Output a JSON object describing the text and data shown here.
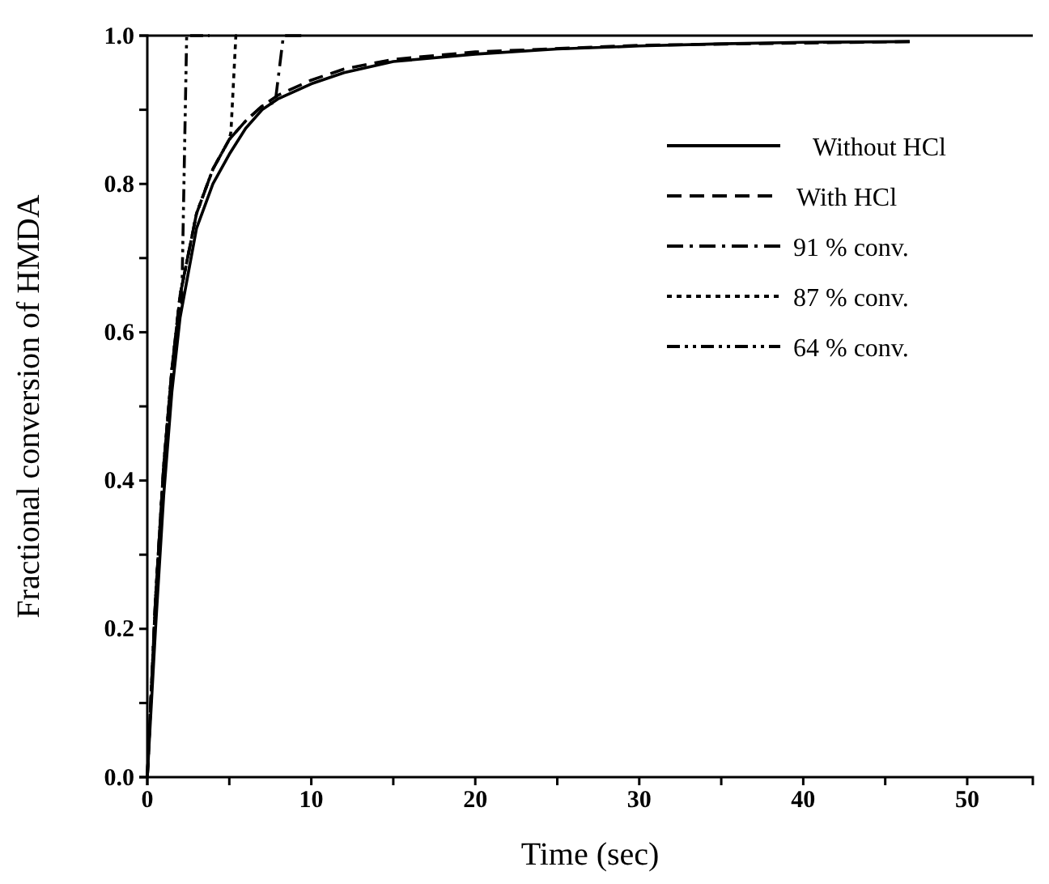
{
  "chart_data": {
    "type": "line",
    "xlabel": "Time (sec)",
    "ylabel": "Fractional conversion of HMDA",
    "xlim": [
      0,
      54
    ],
    "ylim": [
      0,
      1
    ],
    "xticks": [
      0,
      {
        "value": 5,
        "label": null
      },
      10,
      {
        "value": 15,
        "label": null
      },
      20,
      {
        "value": 25,
        "label": null
      },
      30,
      {
        "value": 35,
        "label": null
      },
      40,
      {
        "value": 45,
        "label": null
      },
      50
    ],
    "yticks": [
      {
        "value": 0,
        "label": "0.0"
      },
      {
        "value": 0.1,
        "label": null
      },
      0.2,
      {
        "value": 0.3,
        "label": null
      },
      0.4,
      {
        "value": 0.5,
        "label": null
      },
      0.6,
      {
        "value": 0.7,
        "label": null
      },
      0.8,
      {
        "value": 0.9,
        "label": null
      },
      {
        "value": 1,
        "label": "1.0"
      }
    ],
    "legend": "top right",
    "grid": false,
    "marker": "none",
    "series": [
      {
        "name": "Without HCl",
        "color": "#000000",
        "line_style": "solid",
        "x": [
          0,
          0.5,
          1,
          1.5,
          2,
          3,
          4,
          5,
          6,
          7,
          8,
          10,
          12,
          15,
          20,
          25,
          30,
          35,
          40,
          46.5
        ],
        "values": [
          0,
          0.2,
          0.38,
          0.52,
          0.62,
          0.74,
          0.8,
          0.84,
          0.875,
          0.9,
          0.915,
          0.935,
          0.95,
          0.965,
          0.975,
          0.982,
          0.986,
          0.989,
          0.991,
          0.992
        ]
      },
      {
        "name": "With HCl",
        "color": "#000000",
        "line_style": "dashed",
        "x": [
          0,
          0.5,
          1,
          1.5,
          2,
          3,
          4,
          5,
          6,
          7,
          8,
          10,
          12,
          15,
          20,
          30,
          40,
          46.5
        ],
        "values": [
          0,
          0.24,
          0.42,
          0.55,
          0.65,
          0.76,
          0.82,
          0.86,
          0.885,
          0.905,
          0.92,
          0.94,
          0.955,
          0.968,
          0.978,
          0.987,
          0.99,
          0.992
        ]
      },
      {
        "name": "91 % conv.",
        "color": "#000000",
        "line_style": "dashdot",
        "x": [
          0,
          0.5,
          1,
          1.5,
          2,
          3,
          4,
          5,
          6,
          7,
          7.8,
          8.3,
          9.5
        ],
        "values": [
          0,
          0.24,
          0.42,
          0.55,
          0.65,
          0.76,
          0.82,
          0.86,
          0.885,
          0.905,
          0.91,
          1,
          1
        ]
      },
      {
        "name": "87 % conv.",
        "color": "#000000",
        "line_style": "dotted",
        "x": [
          0,
          0.5,
          1,
          1.5,
          2,
          3,
          4,
          5,
          5.1,
          5.4,
          5.6
        ],
        "values": [
          0,
          0.24,
          0.42,
          0.55,
          0.65,
          0.76,
          0.82,
          0.86,
          0.87,
          1,
          1
        ]
      },
      {
        "name": "64 % conv.",
        "color": "#000000",
        "line_style": "dashdotdot",
        "x": [
          0,
          0.5,
          1,
          1.5,
          2,
          2.1,
          2.4,
          3.8
        ],
        "values": [
          0,
          0.24,
          0.42,
          0.55,
          0.64,
          0.64,
          1,
          1
        ]
      }
    ]
  }
}
